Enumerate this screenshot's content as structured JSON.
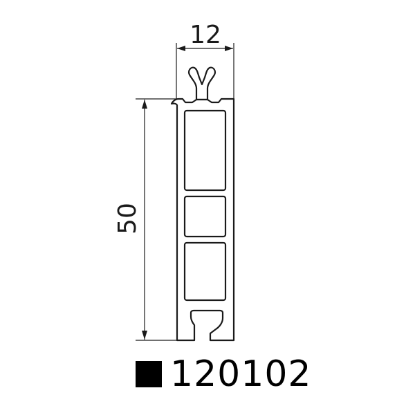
{
  "dimensions": {
    "width_label": "12",
    "height_label": "50"
  },
  "product": {
    "code": "120102",
    "marker_icon": "filled-square-icon"
  },
  "colors": {
    "line": "#1a1a1a",
    "background": "#ffffff"
  }
}
